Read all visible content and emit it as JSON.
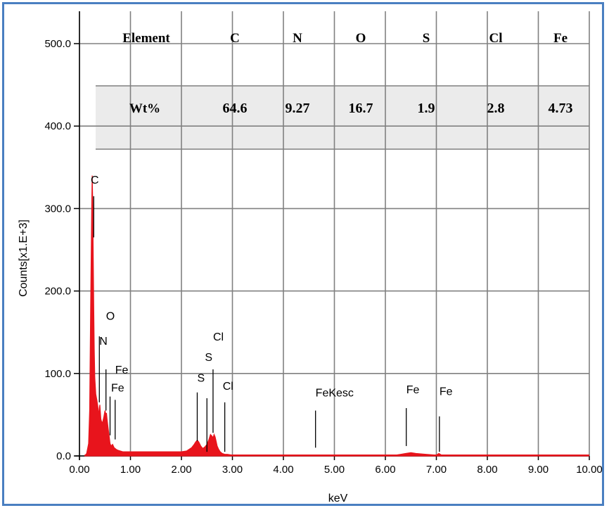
{
  "chart_data": {
    "type": "line",
    "xlabel": "keV",
    "ylabel": "Counts[x1.E+3]",
    "xlim": [
      0,
      10
    ],
    "ylim": [
      0,
      500
    ],
    "grid": true,
    "x_ticks": [
      "0.00",
      "1.00",
      "2.00",
      "3.00",
      "4.00",
      "5.00",
      "6.00",
      "7.00",
      "8.00",
      "9.00",
      "10.00"
    ],
    "y_ticks": [
      "0.0",
      "100.0",
      "200.0",
      "300.0",
      "400.0",
      "500.0"
    ],
    "line_color": "#e8141c",
    "spectrum": {
      "x": [
        0.1,
        0.14,
        0.18,
        0.2,
        0.22,
        0.24,
        0.25,
        0.26,
        0.27,
        0.28,
        0.29,
        0.3,
        0.32,
        0.34,
        0.36,
        0.38,
        0.39,
        0.4,
        0.42,
        0.44,
        0.46,
        0.48,
        0.5,
        0.52,
        0.53,
        0.54,
        0.56,
        0.58,
        0.6,
        0.62,
        0.65,
        0.68,
        0.7,
        0.72,
        0.75,
        0.8,
        0.85,
        0.9,
        1.0,
        1.2,
        1.5,
        1.8,
        2.0,
        2.1,
        2.15,
        2.2,
        2.25,
        2.28,
        2.31,
        2.34,
        2.38,
        2.42,
        2.46,
        2.5,
        2.54,
        2.57,
        2.6,
        2.62,
        2.64,
        2.66,
        2.68,
        2.7,
        2.73,
        2.76,
        2.8,
        2.85,
        2.9,
        3.0,
        3.5,
        4.0,
        4.5,
        5.0,
        5.5,
        5.8,
        6.0,
        6.2,
        6.3,
        6.4,
        6.5,
        6.6,
        6.8,
        7.0,
        7.05,
        7.1,
        7.5,
        8.0,
        9.0,
        10.0
      ],
      "y": [
        0,
        3,
        15,
        55,
        180,
        300,
        340,
        310,
        240,
        180,
        130,
        95,
        75,
        68,
        60,
        48,
        58,
        62,
        45,
        40,
        42,
        48,
        55,
        50,
        52,
        45,
        35,
        25,
        15,
        12,
        14,
        10,
        9,
        8,
        7,
        6,
        5,
        5,
        5,
        5,
        5,
        5,
        5,
        6,
        8,
        10,
        14,
        17,
        19,
        17,
        12,
        9,
        11,
        14,
        20,
        26,
        24,
        22,
        26,
        23,
        18,
        12,
        8,
        5,
        3,
        2,
        2,
        1,
        1,
        1,
        1,
        1,
        1,
        1,
        1,
        1,
        2,
        3,
        4,
        3,
        2,
        1,
        3,
        1,
        1,
        1,
        1,
        0
      ]
    },
    "peak_labels": [
      {
        "text": "C",
        "x": 0.22,
        "y": 330
      },
      {
        "text": "O",
        "x": 0.52,
        "y": 165
      },
      {
        "text": "N",
        "x": 0.39,
        "y": 135
      },
      {
        "text": "Fe",
        "x": 0.7,
        "y": 100
      },
      {
        "text": "Fe",
        "x": 0.62,
        "y": 78
      },
      {
        "text": "Cl",
        "x": 2.62,
        "y": 140
      },
      {
        "text": "S",
        "x": 2.46,
        "y": 115
      },
      {
        "text": "S",
        "x": 2.31,
        "y": 90
      },
      {
        "text": "Cl",
        "x": 2.81,
        "y": 80
      },
      {
        "text": "FeKesc",
        "x": 4.63,
        "y": 72
      },
      {
        "text": "Fe",
        "x": 6.41,
        "y": 76
      },
      {
        "text": "Fe",
        "x": 7.06,
        "y": 74
      }
    ],
    "marker_lines": [
      {
        "x": 0.28,
        "y_top": 315,
        "y_bot": 265
      },
      {
        "x": 0.39,
        "y_top": 145,
        "y_bot": 65
      },
      {
        "x": 0.52,
        "y_top": 105,
        "y_bot": 55
      },
      {
        "x": 0.6,
        "y_top": 72,
        "y_bot": 25
      },
      {
        "x": 0.7,
        "y_top": 68,
        "y_bot": 20
      },
      {
        "x": 2.31,
        "y_top": 77,
        "y_bot": 18
      },
      {
        "x": 2.5,
        "y_top": 70,
        "y_bot": 5
      },
      {
        "x": 2.62,
        "y_top": 105,
        "y_bot": 28
      },
      {
        "x": 2.85,
        "y_top": 65,
        "y_bot": 5
      },
      {
        "x": 4.63,
        "y_top": 55,
        "y_bot": 10
      },
      {
        "x": 6.41,
        "y_top": 58,
        "y_bot": 12
      },
      {
        "x": 7.06,
        "y_top": 48,
        "y_bot": 5
      }
    ],
    "table": {
      "header_label": "Element",
      "row_label": "Wt%",
      "elements": [
        "C",
        "N",
        "O",
        "S",
        "Cl",
        "Fe"
      ],
      "values": [
        "64.6",
        "9.27",
        "16.7",
        "1.9",
        "2.8",
        "4.73"
      ],
      "row_bg": "#ebebeb"
    },
    "frame_color": "#4a7fc1",
    "grid_color": "#808080"
  }
}
